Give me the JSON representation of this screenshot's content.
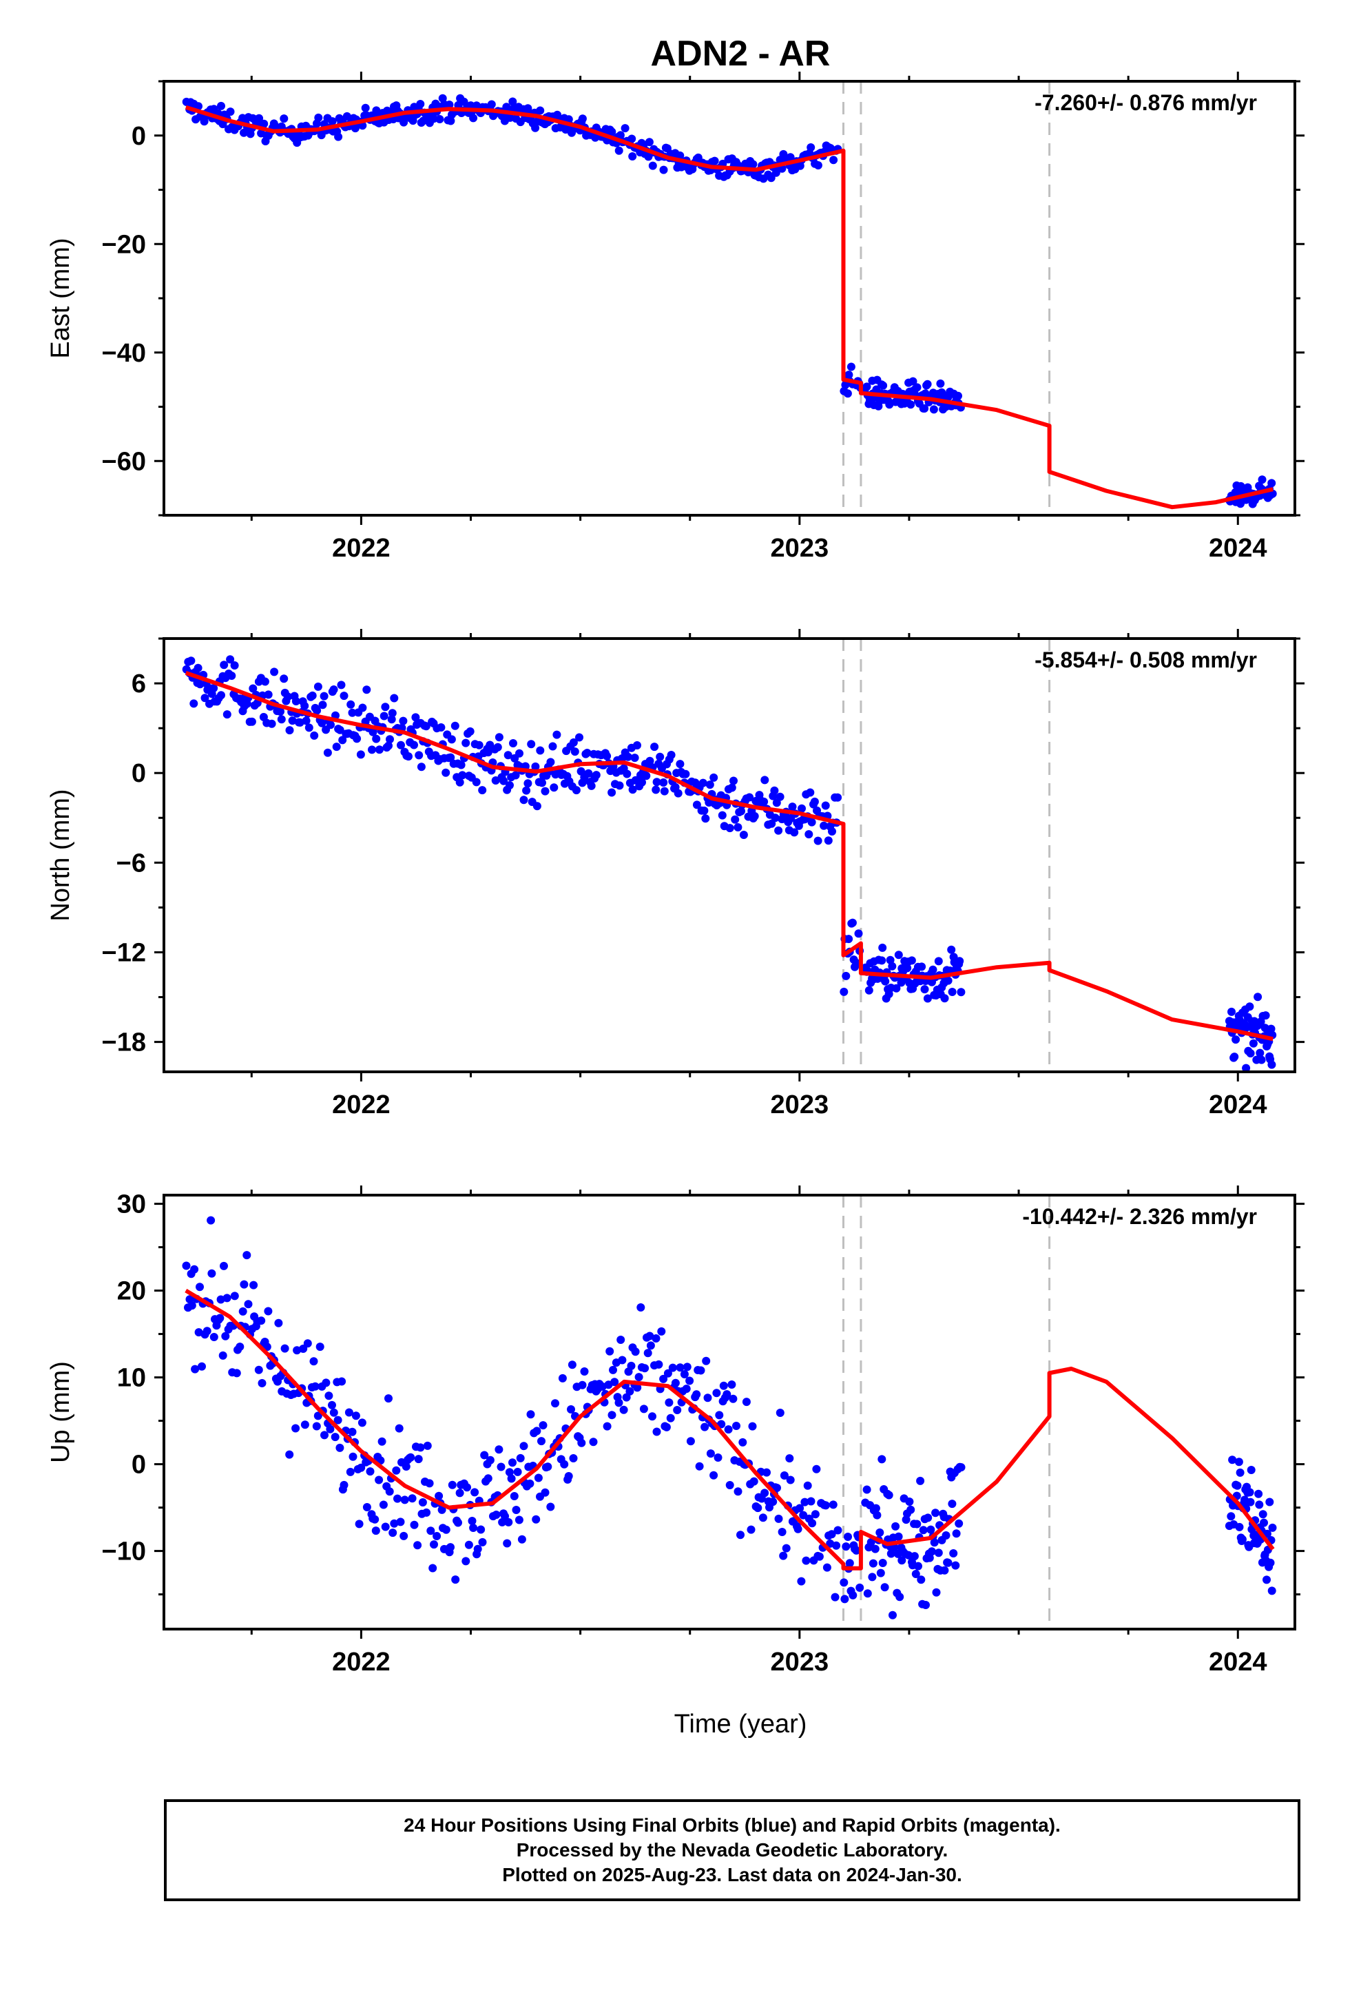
{
  "title": "ADN2 - AR",
  "colors": {
    "points": "#0000ff",
    "model": "#ff0000",
    "breaks": "#bfbfbf",
    "frame": "#000000"
  },
  "x_axis": {
    "label": "Time (year)",
    "range": [
      2021.55,
      2024.13
    ],
    "ticks": [
      2022,
      2023,
      2024
    ],
    "tick_labels": [
      "2022",
      "2023",
      "2024"
    ]
  },
  "footer": {
    "lines": [
      "24 Hour Positions Using Final Orbits (blue) and Rapid Orbits (magenta).",
      "Processed by the Nevada Geodetic Laboratory.",
      "Plotted on 2025-Aug-23. Last data on 2024-Jan-30."
    ]
  },
  "chart_data": [
    {
      "type": "scatter",
      "panel": "east",
      "ylabel": "East (mm)",
      "ylim": [
        -70,
        10
      ],
      "yticks": [
        0,
        -20,
        -40,
        -60
      ],
      "ytick_labels": [
        "0",
        "−20",
        "−40",
        "−60"
      ],
      "rate_annotation": "-7.260+/- 0.876 mm/yr",
      "breaks": [
        2023.1,
        2023.14,
        2023.57
      ],
      "model": [
        [
          2021.6,
          5.2
        ],
        [
          2021.7,
          2.7
        ],
        [
          2021.8,
          0.8
        ],
        [
          2021.9,
          1.1
        ],
        [
          2022.0,
          2.6
        ],
        [
          2022.1,
          4.2
        ],
        [
          2022.2,
          4.9
        ],
        [
          2022.3,
          4.6
        ],
        [
          2022.4,
          3.6
        ],
        [
          2022.5,
          1.6
        ],
        [
          2022.6,
          -1.2
        ],
        [
          2022.7,
          -4.1
        ],
        [
          2022.8,
          -5.8
        ],
        [
          2022.9,
          -6.3
        ],
        [
          2023.0,
          -4.6
        ],
        [
          2023.1,
          -2.8
        ],
        [
          2023.1,
          -45.0
        ],
        [
          2023.14,
          -45.6
        ],
        [
          2023.14,
          -47.5
        ],
        [
          2023.3,
          -48.6
        ],
        [
          2023.45,
          -50.6
        ],
        [
          2023.57,
          -53.5
        ],
        [
          2023.57,
          -62.0
        ],
        [
          2023.7,
          -65.5
        ],
        [
          2023.85,
          -68.5
        ],
        [
          2023.95,
          -67.6
        ],
        [
          2024.08,
          -65.2
        ]
      ],
      "point_segments": [
        {
          "start": 2021.6,
          "end": 2023.09,
          "count": 430,
          "spread": 1.0
        },
        {
          "start": 2023.1,
          "end": 2023.14,
          "count": 14,
          "spread": 1.2
        },
        {
          "start": 2023.15,
          "end": 2023.37,
          "count": 90,
          "spread": 1.3
        },
        {
          "start": 2023.98,
          "end": 2024.08,
          "count": 60,
          "spread": 0.9
        }
      ]
    },
    {
      "type": "scatter",
      "panel": "north",
      "ylabel": "North (mm)",
      "ylim": [
        -20,
        9
      ],
      "yticks": [
        6,
        0,
        -6,
        -12,
        -18
      ],
      "ytick_labels": [
        "6",
        "0",
        "−6",
        "−12",
        "−18"
      ],
      "rate_annotation": "-5.854+/- 0.508 mm/yr",
      "breaks": [
        2023.1,
        2023.14,
        2023.57
      ],
      "model": [
        [
          2021.6,
          6.7
        ],
        [
          2021.7,
          5.7
        ],
        [
          2021.8,
          4.6
        ],
        [
          2021.9,
          3.8
        ],
        [
          2022.0,
          3.2
        ],
        [
          2022.1,
          2.7
        ],
        [
          2022.2,
          1.6
        ],
        [
          2022.3,
          0.4
        ],
        [
          2022.4,
          0.1
        ],
        [
          2022.5,
          0.6
        ],
        [
          2022.6,
          0.7
        ],
        [
          2022.7,
          -0.2
        ],
        [
          2022.8,
          -1.7
        ],
        [
          2022.9,
          -2.3
        ],
        [
          2023.0,
          -2.7
        ],
        [
          2023.1,
          -3.4
        ],
        [
          2023.1,
          -12.2
        ],
        [
          2023.14,
          -11.4
        ],
        [
          2023.14,
          -13.4
        ],
        [
          2023.3,
          -13.7
        ],
        [
          2023.45,
          -13.0
        ],
        [
          2023.57,
          -12.7
        ],
        [
          2023.57,
          -13.2
        ],
        [
          2023.7,
          -14.6
        ],
        [
          2023.85,
          -16.5
        ],
        [
          2024.0,
          -17.3
        ],
        [
          2024.08,
          -17.8
        ]
      ],
      "point_segments": [
        {
          "start": 2021.6,
          "end": 2023.09,
          "count": 430,
          "spread": 1.0
        },
        {
          "start": 2023.1,
          "end": 2023.14,
          "count": 14,
          "spread": 1.2
        },
        {
          "start": 2023.15,
          "end": 2023.37,
          "count": 90,
          "spread": 0.8
        },
        {
          "start": 2023.98,
          "end": 2024.08,
          "count": 60,
          "spread": 0.9
        }
      ]
    },
    {
      "type": "scatter",
      "panel": "up",
      "ylabel": "Up (mm)",
      "ylim": [
        -19,
        31
      ],
      "yticks": [
        30,
        20,
        10,
        0,
        -10
      ],
      "ytick_labels": [
        "30",
        "20",
        "10",
        "0",
        "−10"
      ],
      "rate_annotation": "-10.442+/- 2.326 mm/yr",
      "breaks": [
        2023.1,
        2023.14,
        2023.57
      ],
      "model": [
        [
          2021.6,
          20.0
        ],
        [
          2021.7,
          17.0
        ],
        [
          2021.8,
          12.0
        ],
        [
          2021.9,
          6.5
        ],
        [
          2022.0,
          1.5
        ],
        [
          2022.1,
          -2.5
        ],
        [
          2022.2,
          -5.0
        ],
        [
          2022.3,
          -4.5
        ],
        [
          2022.4,
          -0.5
        ],
        [
          2022.5,
          5.5
        ],
        [
          2022.6,
          9.5
        ],
        [
          2022.7,
          9.0
        ],
        [
          2022.8,
          5.0
        ],
        [
          2022.9,
          -1.0
        ],
        [
          2023.0,
          -6.5
        ],
        [
          2023.1,
          -11.5
        ],
        [
          2023.1,
          -12.0
        ],
        [
          2023.14,
          -12.0
        ],
        [
          2023.14,
          -7.8
        ],
        [
          2023.2,
          -9.2
        ],
        [
          2023.3,
          -8.5
        ],
        [
          2023.45,
          -2.0
        ],
        [
          2023.57,
          5.5
        ],
        [
          2023.57,
          10.5
        ],
        [
          2023.62,
          11.0
        ],
        [
          2023.7,
          9.5
        ],
        [
          2023.85,
          3.0
        ],
        [
          2024.0,
          -4.5
        ],
        [
          2024.08,
          -9.8
        ]
      ],
      "point_segments": [
        {
          "start": 2021.6,
          "end": 2023.09,
          "count": 430,
          "spread": 3.6
        },
        {
          "start": 2023.1,
          "end": 2023.14,
          "count": 14,
          "spread": 4.0
        },
        {
          "start": 2023.15,
          "end": 2023.37,
          "count": 90,
          "spread": 3.4
        },
        {
          "start": 2023.98,
          "end": 2024.08,
          "count": 60,
          "spread": 3.0
        }
      ]
    }
  ]
}
